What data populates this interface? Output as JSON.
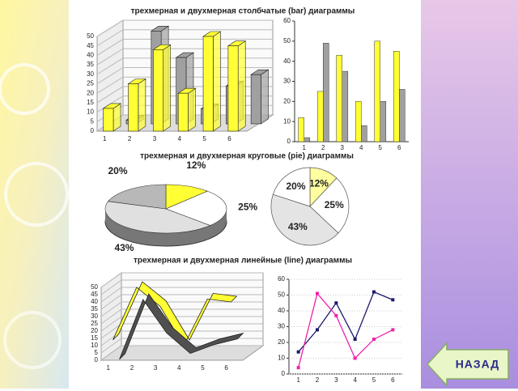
{
  "chart_data": [
    {
      "type": "bar3d",
      "title": "трехмерная и двухмерная столбчатые (bar) диаграммы",
      "categories": [
        "1",
        "2",
        "3",
        "4",
        "5",
        "6"
      ],
      "series": [
        {
          "color": "#ffff33",
          "values": [
            12,
            25,
            43,
            20,
            50,
            45
          ]
        },
        {
          "color": "#a0a0a0",
          "values": [
            2,
            49,
            35,
            8,
            20,
            26
          ]
        }
      ],
      "ylim": [
        0,
        50
      ],
      "yticks": [
        0,
        5,
        10,
        15,
        20,
        25,
        30,
        35,
        40,
        45,
        50
      ]
    },
    {
      "type": "bar",
      "categories": [
        "1",
        "2",
        "3",
        "4",
        "5",
        "6"
      ],
      "series": [
        {
          "color": "#ffff33",
          "values": [
            12,
            25,
            43,
            20,
            50,
            45
          ]
        },
        {
          "color": "#a0a0a0",
          "values": [
            2,
            49,
            35,
            8,
            20,
            26
          ]
        }
      ],
      "ylim": [
        0,
        60
      ],
      "yticks": [
        0,
        10,
        20,
        30,
        40,
        50,
        60
      ]
    },
    {
      "type": "pie3d",
      "title": "трехмерная и двухмерная круговые (pie) диаграммы",
      "values": [
        12,
        25,
        43,
        20
      ],
      "value_labels": [
        "12%",
        "25%",
        "43%",
        "20%"
      ],
      "colors": [
        "#ffff33",
        "#ffffff",
        "#e0e0e0",
        "#b8b8b8"
      ]
    },
    {
      "type": "pie",
      "values": [
        12,
        25,
        43,
        20
      ],
      "value_labels": [
        "12%",
        "25%",
        "43%",
        "20%"
      ],
      "colors": [
        "#ffffa0",
        "#ffffff",
        "#e4e4e4",
        "#ffffff"
      ]
    },
    {
      "type": "line3d",
      "title": "трехмерная и двухмерная линейные (line) диаграммы",
      "categories": [
        "1",
        "2",
        "3",
        "4",
        "5",
        "6"
      ],
      "series": [
        {
          "color": "#ffff33",
          "values": [
            14,
            50,
            37,
            10,
            42,
            40
          ]
        },
        {
          "color": "#505050",
          "values": [
            4,
            45,
            22,
            8,
            14,
            18
          ]
        }
      ],
      "ylim": [
        0,
        50
      ],
      "yticks": [
        0,
        5,
        10,
        15,
        20,
        25,
        30,
        35,
        40,
        45,
        50
      ]
    },
    {
      "type": "line",
      "categories": [
        "1",
        "2",
        "3",
        "4",
        "5",
        "6"
      ],
      "series": [
        {
          "color": "#1a1a6e",
          "values": [
            14,
            28,
            45,
            22,
            52,
            47
          ]
        },
        {
          "color": "#ee22aa",
          "values": [
            4,
            51,
            37,
            10,
            22,
            28
          ]
        }
      ],
      "ylim": [
        0,
        60
      ],
      "yticks": [
        0,
        10,
        20,
        30,
        40,
        50,
        60
      ],
      "grid": true
    }
  ],
  "button": {
    "label": "НАЗАД"
  }
}
